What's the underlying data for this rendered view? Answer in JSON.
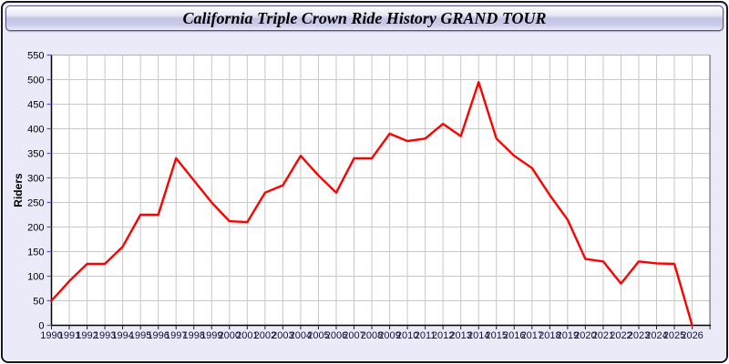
{
  "header": {
    "title": "California Triple Crown Ride History GRAND TOUR"
  },
  "chart_data": {
    "type": "line",
    "title": "California Triple Crown Ride History GRAND TOUR",
    "xlabel": "",
    "ylabel": "Riders",
    "ylim": [
      0,
      550
    ],
    "ytick_step": 50,
    "grid": true,
    "legend_position": "none",
    "categories": [
      1990,
      1991,
      1992,
      1993,
      1994,
      1995,
      1996,
      1997,
      1998,
      1999,
      2000,
      2001,
      2002,
      2003,
      2004,
      2005,
      2006,
      2007,
      2008,
      2009,
      2010,
      2011,
      2012,
      2013,
      2014,
      2015,
      2016,
      2017,
      2018,
      2019,
      2020,
      2021,
      2022,
      2023,
      2024,
      2025,
      2026
    ],
    "series": [
      {
        "name": "Riders",
        "color": "#ff0000",
        "values": [
          50,
          90,
          125,
          125,
          160,
          225,
          225,
          340,
          295,
          250,
          212,
          210,
          270,
          285,
          345,
          305,
          270,
          340,
          340,
          390,
          375,
          380,
          410,
          385,
          495,
          380,
          345,
          320,
          265,
          215,
          135,
          130,
          85,
          130,
          126,
          125,
          0
        ]
      }
    ],
    "theme": {
      "plot_background": "#ffffff",
      "page_background": "#eaeaf8",
      "grid_color": "#c8c8c8",
      "axis_color": "#000000",
      "x_tick_color": "#222222",
      "y_tick_color": "#5b5bd6",
      "x_label_color": "#10103c",
      "y_label_color": "#000000"
    }
  }
}
